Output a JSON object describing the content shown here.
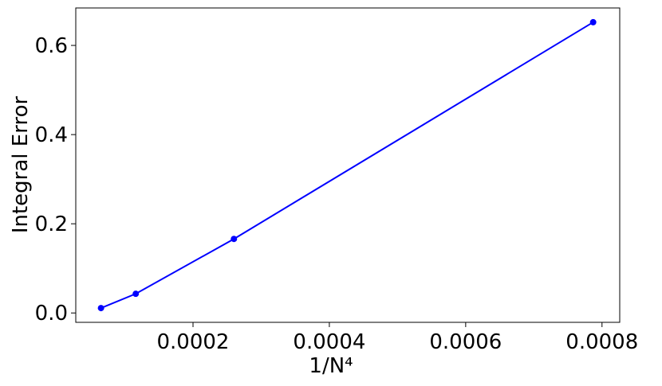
{
  "chart_data": {
    "type": "line",
    "xlabel": "1/N⁴",
    "ylabel": "Integral Error",
    "series": [
      {
        "color": "#0000ff",
        "x": [
          6.5e-05,
          0.000116,
          0.00026,
          0.000787
        ],
        "values": [
          0.011,
          0.043,
          0.166,
          0.652
        ]
      }
    ],
    "xlim": [
      2.8e-05,
      0.000826
    ],
    "xticks": [
      0.0002,
      0.0004,
      0.0006,
      0.0008
    ],
    "ylim": [
      -0.021,
      0.684
    ],
    "yticks": [
      {
        "value": 0,
        "label": "0.0"
      },
      0.2,
      0.4,
      0.6
    ],
    "grid": false
  }
}
